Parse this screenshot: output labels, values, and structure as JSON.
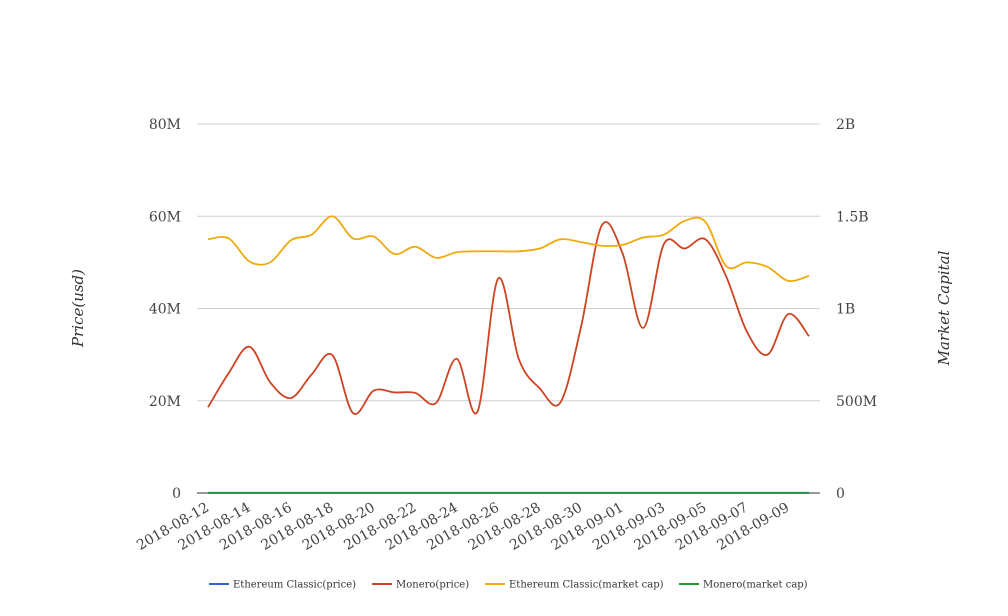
{
  "chart_data": {
    "type": "line",
    "ylabel_left": "Price(usd)",
    "ylabel_right": "Market Capital",
    "y_left": {
      "min": 0,
      "max": 80000000,
      "ticks": [
        0,
        20000000,
        40000000,
        60000000,
        80000000
      ],
      "tick_labels": [
        "0",
        "20M",
        "40M",
        "60M",
        "80M"
      ]
    },
    "y_right": {
      "min": 0,
      "max": 2000000000,
      "ticks": [
        0,
        500000000,
        1000000000,
        1500000000,
        2000000000
      ],
      "tick_labels": [
        "0",
        "500M",
        "1B",
        "1.5B",
        "2B"
      ]
    },
    "x_tick_labels": [
      "2018-08-12",
      "2018-08-14",
      "2018-08-16",
      "2018-08-18",
      "2018-08-20",
      "2018-08-22",
      "2018-08-24",
      "2018-08-26",
      "2018-08-28",
      "2018-08-30",
      "2018-09-01",
      "2018-09-03",
      "2018-09-05",
      "2018-09-07",
      "2018-09-09"
    ],
    "x": [
      "2018-08-12",
      "2018-08-13",
      "2018-08-14",
      "2018-08-15",
      "2018-08-16",
      "2018-08-17",
      "2018-08-18",
      "2018-08-19",
      "2018-08-20",
      "2018-08-21",
      "2018-08-22",
      "2018-08-23",
      "2018-08-24",
      "2018-08-25",
      "2018-08-26",
      "2018-08-27",
      "2018-08-28",
      "2018-08-29",
      "2018-08-30",
      "2018-08-31",
      "2018-09-01",
      "2018-09-02",
      "2018-09-03",
      "2018-09-04",
      "2018-09-05",
      "2018-09-06",
      "2018-09-07",
      "2018-09-08",
      "2018-09-09",
      "2018-09-10"
    ],
    "grid": true,
    "legend_position": "bottom",
    "series": [
      {
        "name": "Ethereum Classic(price)",
        "axis": "left",
        "color": "#3366cc",
        "values": [
          14,
          14,
          13,
          13,
          13,
          14,
          15,
          14,
          14,
          14,
          13,
          13,
          12,
          12,
          12,
          12,
          12,
          12,
          12,
          12,
          12,
          12,
          12,
          13,
          13,
          12,
          12,
          12,
          11,
          12
        ]
      },
      {
        "name": "Monero(price)",
        "axis": "left",
        "color": "#cc4422",
        "values": [
          18600000,
          26000000,
          31700000,
          24000000,
          20600000,
          25700000,
          29900000,
          17300000,
          22200000,
          21800000,
          21700000,
          19500000,
          29100000,
          17600000,
          46500000,
          29000000,
          22700000,
          19600000,
          36000000,
          58000000,
          52000000,
          35800000,
          54000000,
          53000000,
          55000000,
          47000000,
          35000000,
          30000000,
          38800000,
          34000000
        ]
      },
      {
        "name": "Ethereum Classic(market cap)",
        "axis": "right",
        "color": "#eeaa11",
        "values": [
          1375000000,
          1380000000,
          1255000000,
          1250000000,
          1370000000,
          1400000000,
          1500000000,
          1380000000,
          1390000000,
          1295000000,
          1335000000,
          1275000000,
          1305000000,
          1310000000,
          1310000000,
          1310000000,
          1325000000,
          1375000000,
          1360000000,
          1340000000,
          1345000000,
          1385000000,
          1400000000,
          1475000000,
          1470000000,
          1230000000,
          1250000000,
          1225000000,
          1150000000,
          1177000000
        ]
      },
      {
        "name": "Monero(market cap)",
        "axis": "right",
        "color": "#229933",
        "values": [
          1500000,
          1500000,
          1500000,
          1500000,
          1500000,
          1500000,
          1500000,
          1500000,
          1500000,
          1500000,
          1500000,
          1500000,
          1500000,
          1500000,
          1500000,
          1500000,
          1500000,
          1500000,
          1500000,
          1500000,
          1500000,
          1500000,
          1500000,
          1500000,
          1500000,
          1500000,
          1500000,
          1500000,
          1500000,
          1500000
        ]
      }
    ]
  }
}
